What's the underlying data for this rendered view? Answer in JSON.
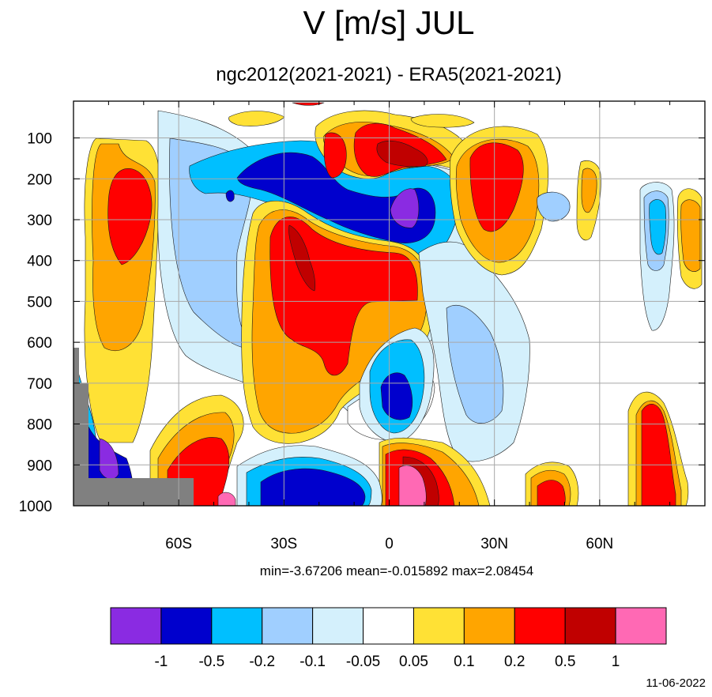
{
  "chart_data": {
    "type": "heatmap",
    "title": "V [m/s] JUL",
    "subtitle": "ngc2012(2021-2021) - ERA5(2021-2021)",
    "xlabel": "",
    "ylabel": "",
    "x_tick_labels": [
      "60S",
      "30S",
      "0",
      "30N",
      "60N"
    ],
    "x_ticks": [
      -60,
      -30,
      0,
      30,
      60
    ],
    "xlim": [
      -90,
      90
    ],
    "y_tick_labels": [
      "100",
      "200",
      "300",
      "400",
      "500",
      "600",
      "700",
      "800",
      "900",
      "1000"
    ],
    "y_ticks": [
      100,
      200,
      300,
      400,
      500,
      600,
      700,
      800,
      900,
      1000
    ],
    "ylim": [
      1000,
      10
    ],
    "y_axis_reversed": true,
    "grid": true,
    "stats": {
      "min": "-3.67206",
      "mean": "-0.015892",
      "max": "2.08454"
    },
    "stats_text": "min=-3.67206   mean=-0.015892   max=2.08454",
    "colorbar": {
      "placement": "bottom",
      "colors": [
        "#8a2be2",
        "#0000cd",
        "#00bfff",
        "#a0cfff",
        "#d4f0fc",
        "#ffffff",
        "#ffe135",
        "#ffa500",
        "#ff0000",
        "#c00000",
        "#ff69b4"
      ],
      "labels": [
        "-1",
        "-0.5",
        "-0.2",
        "-0.1",
        "-0.05",
        "0.05",
        "0.1",
        "0.2",
        "0.5",
        "1"
      ]
    },
    "masked_color": "#808080",
    "features": [
      {
        "name": "SH polar anticyclonic pair",
        "value_ms": 0.5,
        "lat": [
          -75,
          -65
        ],
        "p": [
          180,
          420
        ]
      },
      {
        "name": "SH midlatitude positive core",
        "value_ms": 0.5,
        "lat": [
          -38,
          5
        ],
        "p": [
          270,
          550
        ]
      },
      {
        "name": "upper tropospheric negative band",
        "value_ms": -0.5,
        "lat": [
          -35,
          10
        ],
        "p": [
          150,
          320
        ]
      },
      {
        "name": "equatorial upper negative core",
        "value_ms": -1.0,
        "lat": [
          2,
          8
        ],
        "p": [
          250,
          320
        ]
      },
      {
        "name": "upper tropical positive core",
        "value_ms": 0.5,
        "lat": [
          -10,
          12
        ],
        "p": [
          120,
          250
        ]
      },
      {
        "name": "NH subtropical upper positive",
        "value_ms": 0.5,
        "lat": [
          27,
          38
        ],
        "p": [
          150,
          340
        ]
      },
      {
        "name": "low-level SH negative",
        "value_ms": -0.5,
        "lat": [
          -37,
          -8
        ],
        "p": [
          880,
          1000
        ]
      },
      {
        "name": "low-level equatorial positive",
        "value_ms": 1.0,
        "lat": [
          3,
          12
        ],
        "p": [
          880,
          1000
        ]
      },
      {
        "name": "low-level SH positive",
        "value_ms": 1.0,
        "lat": [
          -58,
          -35
        ],
        "p": [
          790,
          1000
        ]
      },
      {
        "name": "equatorial mid-level negative",
        "value_ms": -0.5,
        "lat": [
          -3,
          10
        ],
        "p": [
          660,
          830
        ]
      },
      {
        "name": "NH polar low-level positive",
        "value_ms": 0.5,
        "lat": [
          71,
          85
        ],
        "p": [
          700,
          1000
        ]
      }
    ]
  },
  "footer": {
    "date": "11-06-2022"
  }
}
